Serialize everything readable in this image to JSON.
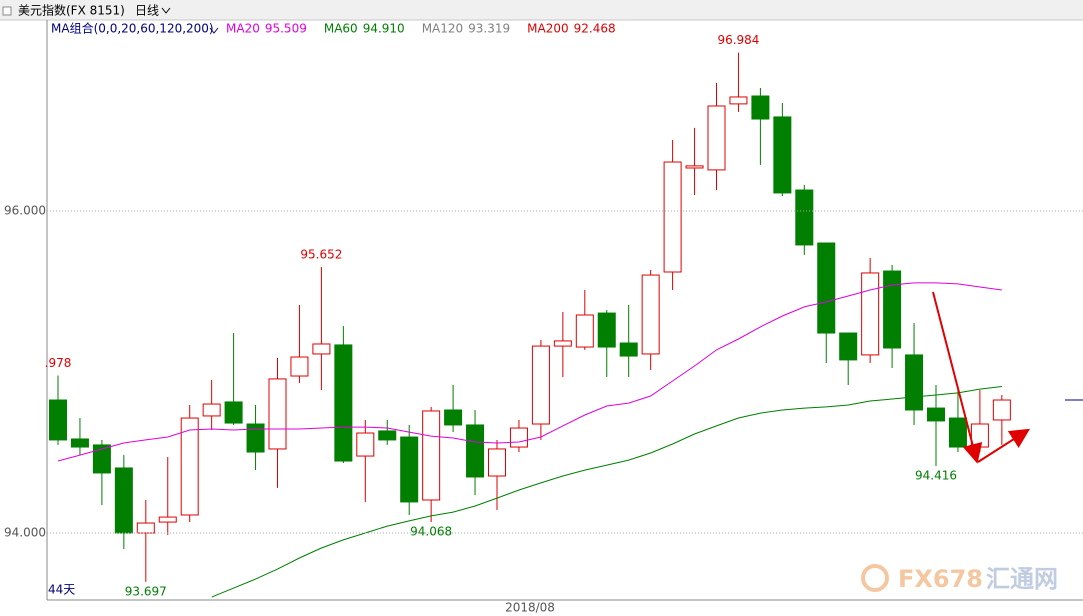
{
  "chart_data": {
    "type": "candlestick",
    "title": "美元指数(FX 8151)",
    "period": "日线",
    "ma_legend_title": "MA组合(0,0,20,60,120,200)",
    "up_color": "#e00000",
    "down_color": "#007f00",
    "open": [
      94.826,
      94.584,
      94.547,
      94.404,
      94.0,
      94.068,
      94.112,
      94.727,
      94.814,
      94.677,
      94.522,
      94.975,
      95.112,
      95.168,
      94.478,
      94.634,
      94.596,
      94.205,
      94.764,
      94.671,
      94.354,
      94.534,
      94.677,
      95.161,
      95.155,
      95.366,
      95.18,
      95.112,
      95.621,
      96.267,
      96.255,
      96.665,
      96.714,
      96.584,
      96.13,
      95.801,
      95.242,
      95.106,
      95.627,
      95.106,
      94.776,
      94.714,
      94.534,
      94.702
    ],
    "high": [
      94.978,
      94.714,
      94.578,
      94.484,
      94.205,
      94.472,
      94.795,
      94.95,
      95.242,
      94.795,
      95.087,
      95.416,
      95.652,
      95.286,
      94.702,
      94.702,
      94.671,
      94.783,
      94.919,
      94.764,
      94.578,
      94.702,
      95.199,
      95.373,
      95.509,
      95.385,
      95.416,
      95.634,
      96.441,
      96.516,
      96.795,
      96.984,
      96.764,
      96.671,
      96.161,
      95.801,
      95.242,
      95.708,
      95.665,
      95.304,
      94.919,
      94.888,
      94.888,
      94.857
    ],
    "low": [
      94.547,
      94.484,
      94.174,
      93.901,
      93.697,
      93.988,
      94.068,
      94.64,
      94.671,
      94.391,
      94.28,
      94.932,
      94.888,
      94.435,
      94.193,
      94.547,
      94.112,
      94.068,
      94.627,
      94.236,
      94.143,
      94.503,
      94.578,
      94.969,
      95.137,
      94.969,
      94.969,
      95.012,
      95.509,
      96.099,
      96.13,
      96.615,
      96.286,
      96.093,
      95.727,
      95.056,
      94.919,
      95.056,
      95.025,
      94.671,
      94.416,
      94.503,
      94.503,
      94.547
    ],
    "close": [
      94.578,
      94.534,
      94.373,
      94.0,
      94.062,
      94.099,
      94.714,
      94.801,
      94.683,
      94.503,
      94.957,
      95.093,
      95.174,
      94.447,
      94.621,
      94.578,
      94.193,
      94.758,
      94.671,
      94.348,
      94.522,
      94.652,
      95.161,
      95.193,
      95.354,
      95.155,
      95.099,
      95.602,
      96.304,
      96.28,
      96.652,
      96.708,
      96.571,
      96.112,
      95.789,
      95.242,
      95.075,
      95.615,
      95.149,
      94.764,
      94.696,
      94.534,
      94.677,
      94.826
    ],
    "high_labels": [
      ".978",
      null,
      null,
      null,
      null,
      null,
      null,
      null,
      null,
      null,
      null,
      null,
      "95.652",
      null,
      null,
      null,
      null,
      null,
      null,
      null,
      null,
      null,
      null,
      null,
      null,
      null,
      null,
      null,
      null,
      null,
      null,
      "96.984",
      null,
      null,
      null,
      null,
      null,
      null,
      null,
      null,
      null,
      null,
      null,
      null
    ],
    "low_labels": [
      null,
      null,
      null,
      null,
      "93.697",
      null,
      null,
      null,
      null,
      null,
      null,
      null,
      null,
      null,
      null,
      null,
      null,
      "94.068",
      null,
      null,
      null,
      null,
      null,
      null,
      null,
      null,
      null,
      null,
      null,
      null,
      null,
      null,
      null,
      null,
      null,
      null,
      null,
      null,
      null,
      null,
      "94.416",
      null,
      null,
      null
    ],
    "overlays": [
      {
        "name": "MA20",
        "label": "95.509",
        "color": "#e000e0",
        "values": [
          94.447,
          94.484,
          94.522,
          94.559,
          94.578,
          94.596,
          94.64,
          94.646,
          94.64,
          94.646,
          94.646,
          94.646,
          94.652,
          94.658,
          94.658,
          94.652,
          94.627,
          94.602,
          94.59,
          94.565,
          94.559,
          94.565,
          94.596,
          94.665,
          94.733,
          94.789,
          94.807,
          94.851,
          94.944,
          95.037,
          95.137,
          95.205,
          95.28,
          95.348,
          95.404,
          95.435,
          95.472,
          95.509,
          95.54,
          95.553,
          95.553,
          95.547,
          95.528,
          95.509
        ]
      },
      {
        "name": "MA60",
        "label": "94.910",
        "color": "#007f00",
        "values": [
          null,
          null,
          null,
          null,
          null,
          null,
          null,
          93.602,
          93.658,
          93.714,
          93.776,
          93.845,
          93.907,
          93.957,
          94.0,
          94.043,
          94.075,
          94.106,
          94.13,
          94.168,
          94.217,
          94.267,
          94.311,
          94.354,
          94.391,
          94.422,
          94.453,
          94.497,
          94.553,
          94.615,
          94.665,
          94.714,
          94.745,
          94.764,
          94.776,
          94.783,
          94.795,
          94.82,
          94.832,
          94.845,
          94.857,
          94.87,
          94.894,
          94.91
        ]
      },
      {
        "name": "MA120",
        "label": "93.319",
        "color": "#808080"
      },
      {
        "name": "MA200",
        "label": "92.468",
        "color": "#e00000"
      }
    ],
    "ylim": [
      93.584,
      97.186
    ],
    "yticks": [
      {
        "value": 96,
        "label": "96.000"
      },
      {
        "value": 94,
        "label": "94.000"
      }
    ],
    "grid": true,
    "x_label": "2018/08",
    "count_label": "44天",
    "watermark": [
      "FX678",
      "汇通网"
    ]
  }
}
